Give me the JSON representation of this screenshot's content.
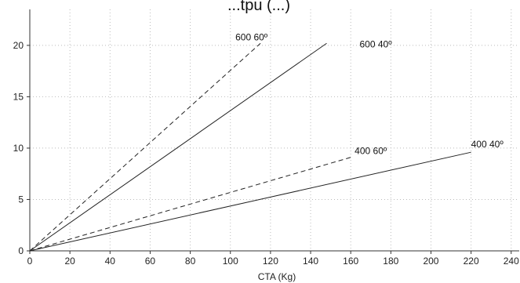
{
  "chart_data": {
    "type": "line",
    "title": "...tpu (...)",
    "xlabel": "CTA (Kg)",
    "ylabel": "",
    "xlim": [
      0,
      244
    ],
    "ylim": [
      0,
      23.5
    ],
    "xticks": [
      0,
      20,
      40,
      60,
      80,
      100,
      120,
      140,
      160,
      180,
      200,
      220,
      240
    ],
    "yticks": [
      0,
      5,
      10,
      15,
      20
    ],
    "grid": true,
    "series": [
      {
        "name": "600 60º",
        "style": "dashed",
        "x": [
          0,
          115
        ],
        "y": [
          0,
          20.2
        ],
        "label": "600 60º"
      },
      {
        "name": "600 40º",
        "style": "solid",
        "x": [
          0,
          148
        ],
        "y": [
          0,
          20.2
        ],
        "label": "600 40º"
      },
      {
        "name": "400 60º",
        "style": "dashed",
        "x": [
          0,
          160
        ],
        "y": [
          0,
          9.1
        ],
        "label": "400 60º"
      },
      {
        "name": "400 40º",
        "style": "solid",
        "x": [
          0,
          220
        ],
        "y": [
          0,
          9.6
        ],
        "label": "400 40º"
      }
    ],
    "colors": {
      "line": "#222222",
      "grid": "#bbbbbb",
      "axis": "#333333"
    }
  }
}
